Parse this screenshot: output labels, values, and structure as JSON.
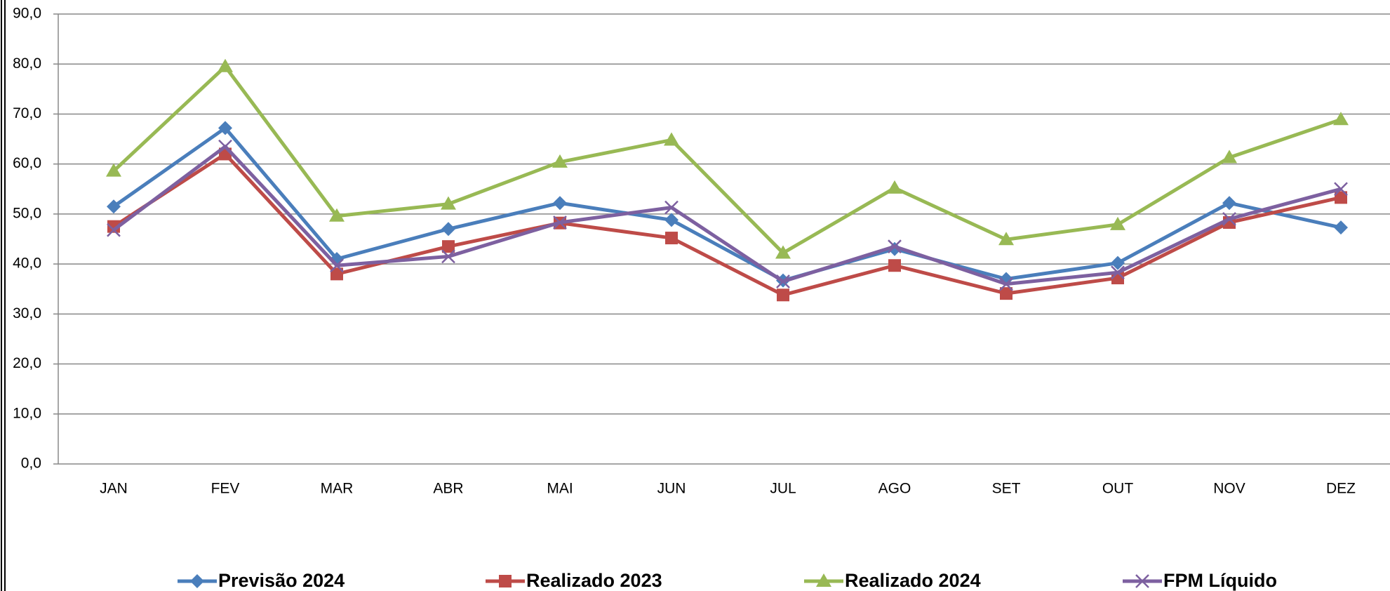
{
  "chart_data": {
    "type": "line",
    "categories": [
      "JAN",
      "FEV",
      "MAR",
      "ABR",
      "MAI",
      "JUN",
      "JUL",
      "AGO",
      "SET",
      "OUT",
      "NOV",
      "DEZ"
    ],
    "series": [
      {
        "name": "Previsão 2024",
        "color": "#4a7ebb",
        "marker": "diamond",
        "values": [
          51.5,
          67.2,
          41.0,
          47.0,
          52.2,
          48.8,
          36.7,
          43.0,
          37.0,
          40.2,
          52.2,
          47.3
        ]
      },
      {
        "name": "Realizado 2023",
        "color": "#be4b48",
        "marker": "square",
        "values": [
          47.5,
          62.0,
          38.0,
          43.5,
          48.2,
          45.2,
          33.8,
          39.7,
          34.1,
          37.2,
          48.3,
          53.3
        ]
      },
      {
        "name": "Realizado 2024",
        "color": "#98b954",
        "marker": "triangle",
        "values": [
          58.6,
          79.5,
          49.6,
          52.0,
          60.4,
          64.8,
          42.2,
          55.2,
          44.9,
          47.9,
          61.3,
          68.9
        ]
      },
      {
        "name": "FPM Líquido",
        "color": "#7d60a0",
        "marker": "x",
        "values": [
          46.8,
          63.5,
          39.7,
          41.5,
          48.3,
          51.3,
          36.5,
          43.5,
          36.0,
          38.3,
          49.0,
          55.0
        ]
      }
    ],
    "ylim": [
      0,
      90
    ],
    "yticks": [
      {
        "value": 0,
        "label": "0,0"
      },
      {
        "value": 10,
        "label": "10,0"
      },
      {
        "value": 20,
        "label": "20,0"
      },
      {
        "value": 30,
        "label": "30,0"
      },
      {
        "value": 40,
        "label": "40,0"
      },
      {
        "value": 50,
        "label": "50,0"
      },
      {
        "value": 60,
        "label": "60,0"
      },
      {
        "value": 70,
        "label": "70,0"
      },
      {
        "value": 80,
        "label": "80,0"
      },
      {
        "value": 90,
        "label": "90,0"
      }
    ],
    "grid": true,
    "legend": "bottom"
  }
}
